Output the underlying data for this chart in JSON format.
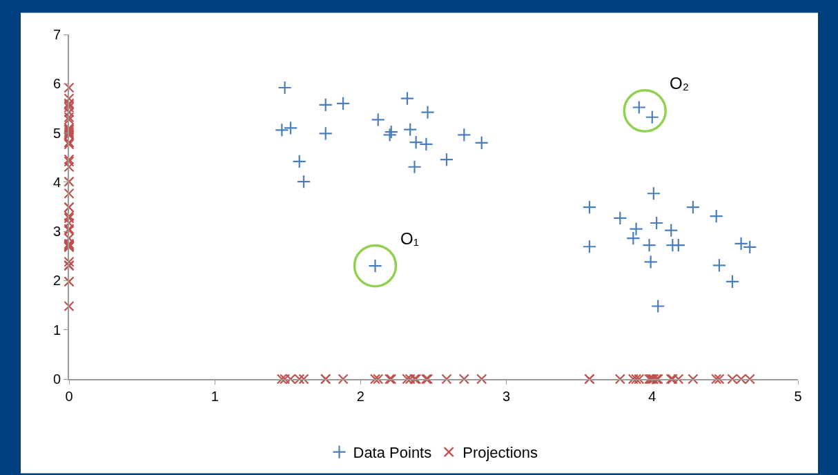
{
  "chart_data": {
    "type": "scatter",
    "xlim": [
      0,
      5
    ],
    "xticks": [
      0,
      1,
      2,
      3,
      4,
      5
    ],
    "ylim": [
      0,
      7
    ],
    "yticks": [
      0,
      1,
      2,
      3,
      4,
      5,
      6,
      7
    ],
    "legend": "bottom",
    "series": [
      {
        "name": "Data Points",
        "color": "#4a7ebb",
        "marker": "plus",
        "x": [
          1.48,
          1.46,
          1.52,
          1.58,
          1.61,
          1.76,
          1.76,
          1.88,
          2.12,
          2.21,
          2.2,
          2.32,
          2.34,
          2.46,
          2.38,
          2.37,
          2.45,
          2.59,
          2.71,
          2.83,
          2.1,
          3.91,
          4.0,
          3.57,
          3.57,
          3.78,
          3.89,
          3.87,
          4.01,
          4.03,
          3.98,
          3.99,
          4.04,
          4.13,
          4.14,
          4.18,
          4.28,
          4.44,
          4.46,
          4.55,
          4.61,
          4.67
        ],
        "values": [
          5.92,
          5.06,
          5.1,
          4.42,
          4.01,
          5.57,
          4.99,
          5.6,
          5.27,
          5.02,
          4.96,
          5.7,
          5.07,
          5.42,
          4.81,
          4.31,
          4.77,
          4.46,
          4.96,
          4.8,
          2.3,
          5.52,
          5.32,
          3.49,
          2.69,
          3.27,
          3.05,
          2.86,
          3.77,
          3.17,
          2.72,
          2.38,
          1.48,
          3.02,
          2.72,
          2.72,
          3.49,
          3.31,
          2.31,
          1.98,
          2.75,
          2.68
        ]
      },
      {
        "name": "Projections",
        "color": "#c0504d",
        "marker": "cross",
        "x": [
          1.48,
          1.46,
          1.52,
          1.58,
          1.61,
          1.76,
          1.76,
          1.88,
          2.12,
          2.21,
          2.2,
          2.32,
          2.34,
          2.46,
          2.38,
          2.37,
          2.45,
          2.59,
          2.71,
          2.83,
          2.1,
          3.91,
          4.0,
          3.57,
          3.57,
          3.78,
          3.89,
          3.87,
          4.01,
          4.03,
          3.98,
          3.99,
          4.04,
          4.13,
          4.14,
          4.18,
          4.28,
          4.44,
          4.46,
          4.55,
          4.61,
          4.67,
          0,
          0,
          0,
          0,
          0,
          0,
          0,
          0,
          0,
          0,
          0,
          0,
          0,
          0,
          0,
          0,
          0,
          0,
          0,
          0,
          0,
          0,
          0,
          0,
          0,
          0,
          0,
          0,
          0,
          0,
          0,
          0,
          0,
          0,
          0,
          0,
          0,
          0,
          0,
          0,
          0,
          0
        ],
        "values": [
          0,
          0,
          0,
          0,
          0,
          0,
          0,
          0,
          0,
          0,
          0,
          0,
          0,
          0,
          0,
          0,
          0,
          0,
          0,
          0,
          0,
          0,
          0,
          0,
          0,
          0,
          0,
          0,
          0,
          0,
          0,
          0,
          0,
          0,
          0,
          0,
          0,
          0,
          0,
          0,
          0,
          0,
          5.92,
          5.06,
          5.1,
          4.42,
          4.01,
          5.57,
          4.99,
          5.6,
          5.27,
          5.02,
          4.96,
          5.7,
          5.07,
          5.42,
          4.81,
          4.31,
          4.77,
          4.46,
          4.96,
          4.8,
          2.3,
          5.52,
          5.32,
          3.49,
          2.69,
          3.27,
          3.05,
          2.86,
          3.77,
          3.17,
          2.72,
          2.38,
          1.48,
          3.02,
          2.72,
          2.72,
          3.49,
          3.31,
          2.31,
          1.98,
          2.75,
          2.68
        ]
      }
    ],
    "annotations": [
      {
        "text": "O₁",
        "x": 2.1,
        "y": 2.3
      },
      {
        "text": "O₂",
        "x": 3.95,
        "y": 5.45
      }
    ]
  }
}
